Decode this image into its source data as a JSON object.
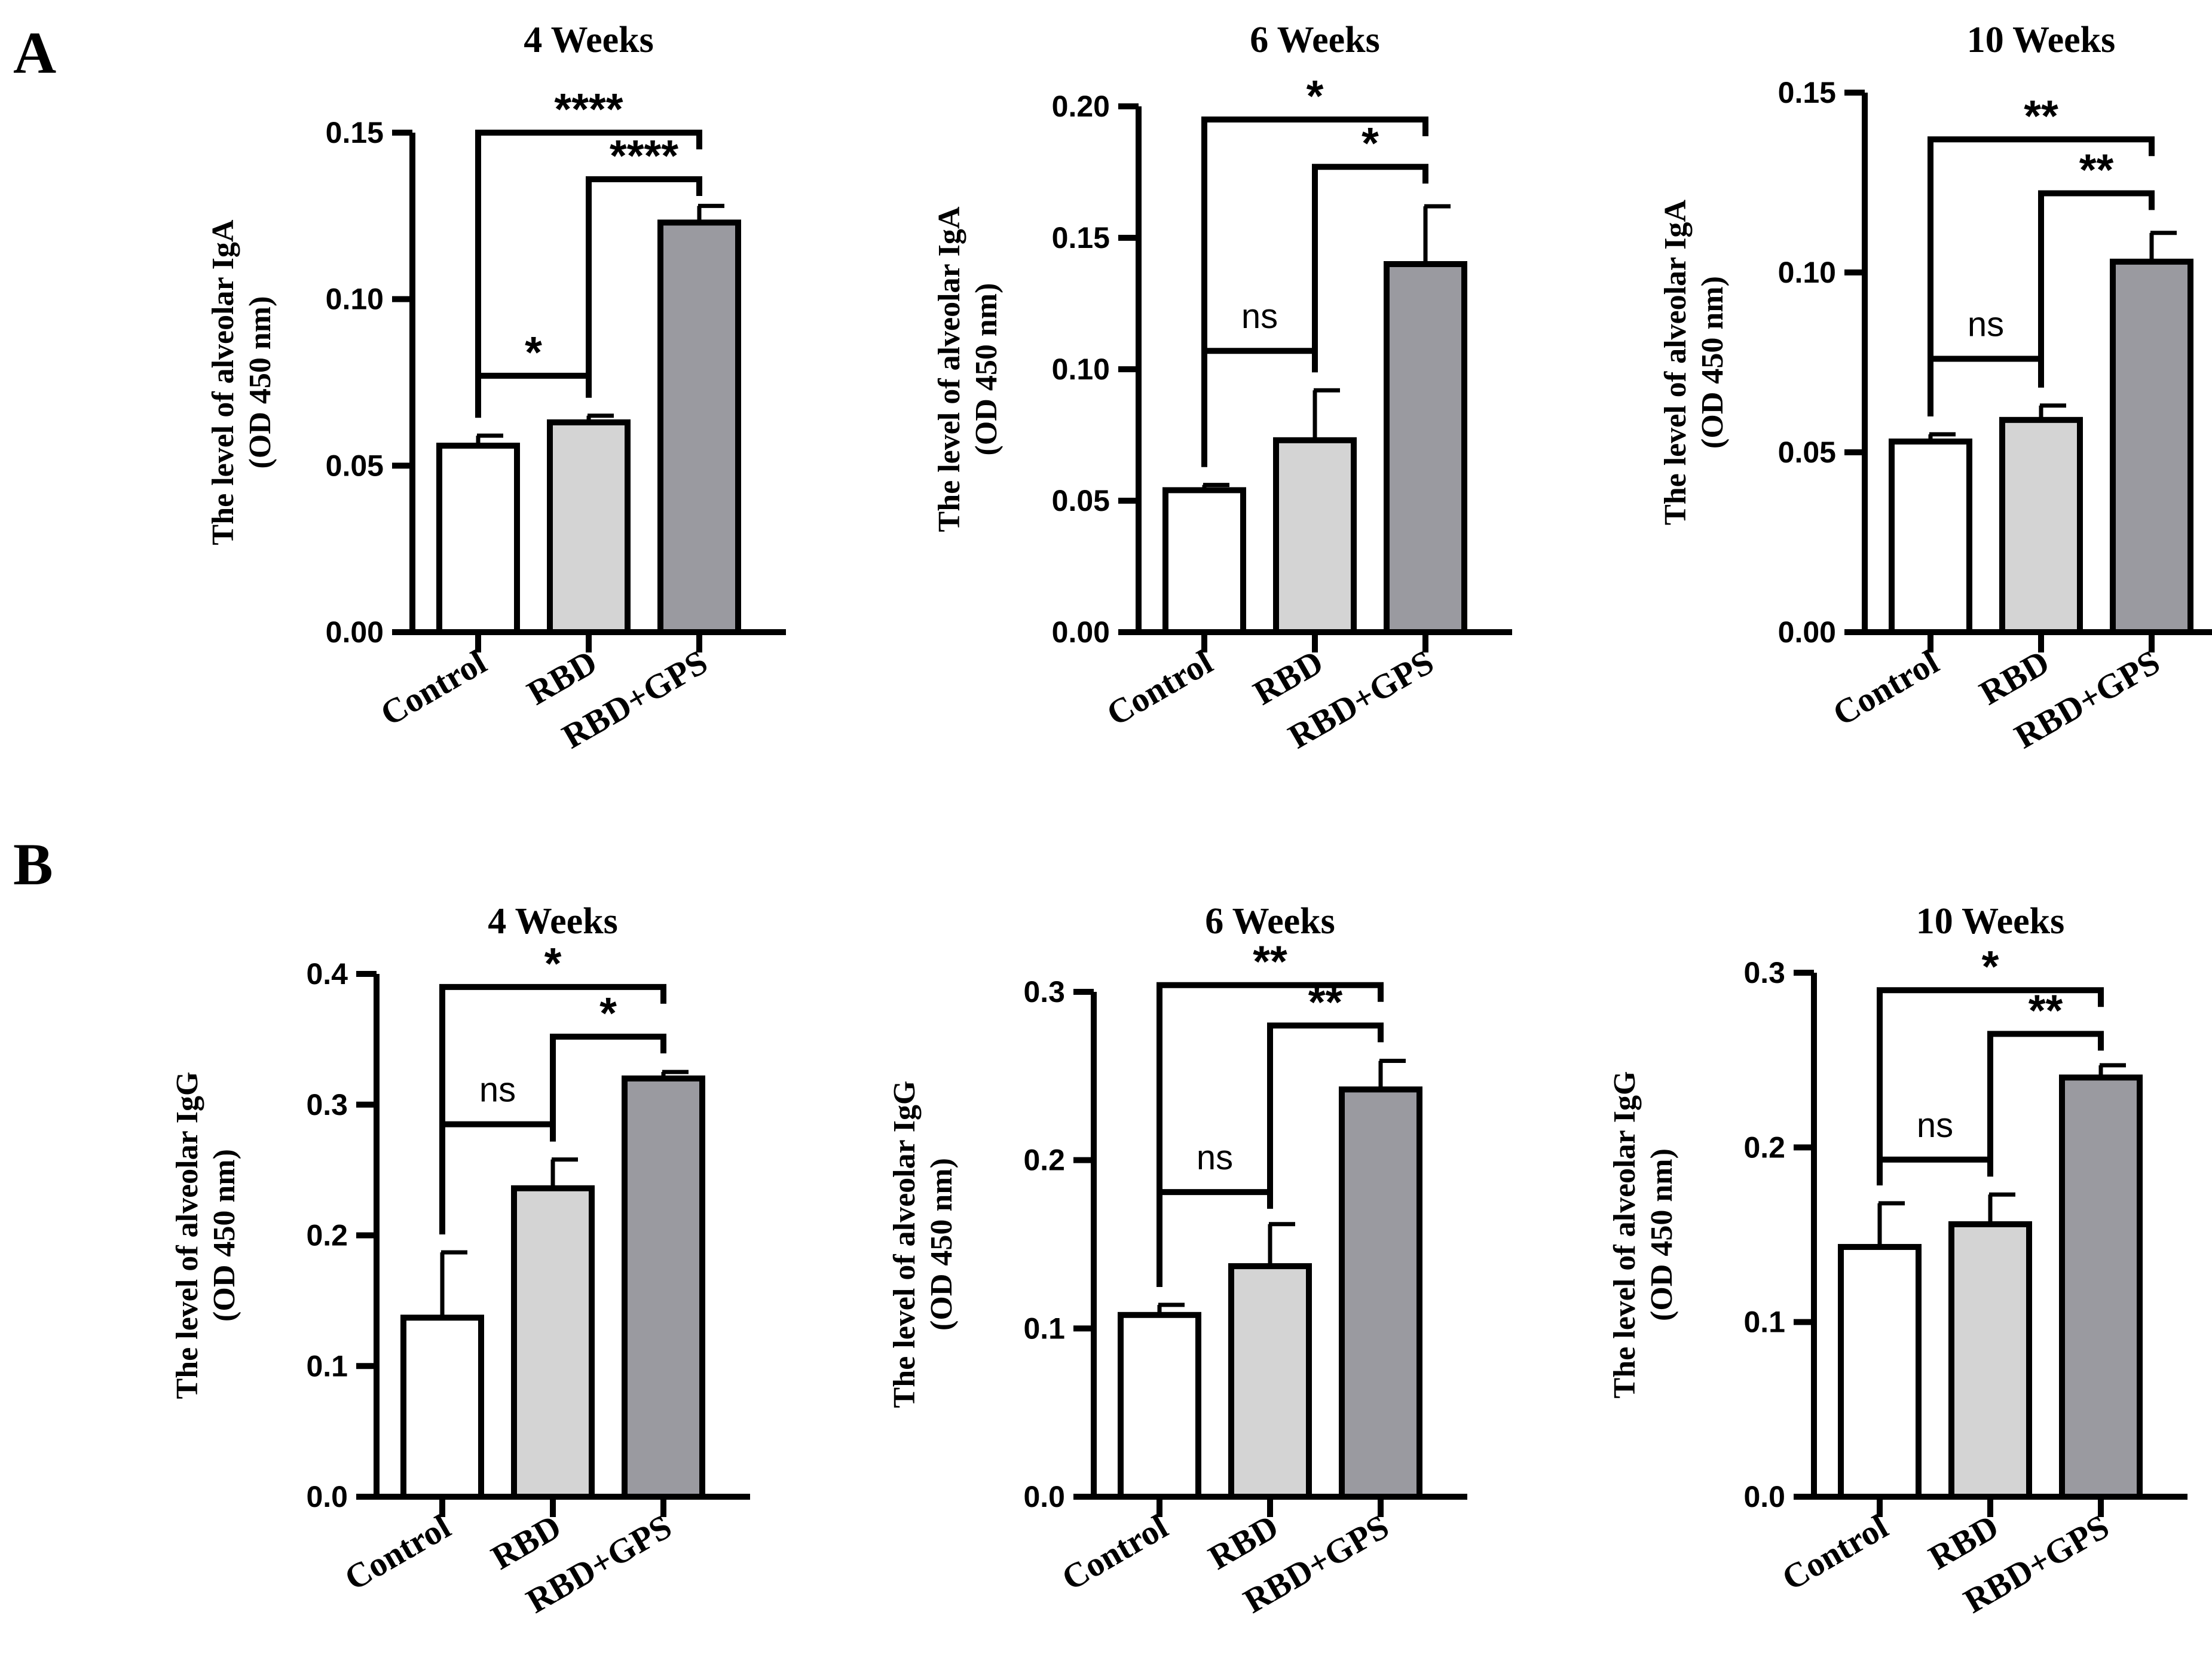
{
  "panels": [
    {
      "letter": "A"
    },
    {
      "letter": "B"
    }
  ],
  "chart_data": [
    {
      "type": "bar",
      "panel": "A",
      "title": "4 Weeks",
      "ylabel_line1": "The level of alveolar IgA",
      "ylabel_line2": "(OD 450 nm)",
      "categories": [
        "Control",
        "RBD",
        "RBD+GPS"
      ],
      "values": [
        0.056,
        0.063,
        0.123
      ],
      "errors": [
        0.003,
        0.002,
        0.005
      ],
      "ylim": [
        0,
        0.15
      ],
      "yticks": [
        0.0,
        0.05,
        0.1,
        0.15
      ],
      "ytick_labels": [
        "0.00",
        "0.05",
        "0.10",
        "0.15"
      ],
      "bar_colors": [
        "#ffffff",
        "#d4d4d4",
        "#9a9aa0"
      ],
      "comparisons": [
        {
          "from": 0,
          "to": 1,
          "label": "*",
          "level": 0.077
        },
        {
          "from": 1,
          "to": 2,
          "label": "****",
          "level": 0.136
        },
        {
          "from": 0,
          "to": 2,
          "label": "****",
          "level": 0.15
        }
      ]
    },
    {
      "type": "bar",
      "panel": "A",
      "title": "6 Weeks",
      "ylabel_line1": "The level of alveolar IgA",
      "ylabel_line2": "(OD 450 nm)",
      "categories": [
        "Control",
        "RBD",
        "RBD+GPS"
      ],
      "values": [
        0.054,
        0.073,
        0.14
      ],
      "errors": [
        0.002,
        0.019,
        0.022
      ],
      "ylim": [
        0,
        0.2
      ],
      "yticks": [
        0.0,
        0.05,
        0.1,
        0.15,
        0.2
      ],
      "ytick_labels": [
        "0.00",
        "0.05",
        "0.10",
        "0.15",
        "0.20"
      ],
      "bar_colors": [
        "#ffffff",
        "#d4d4d4",
        "#9a9aa0"
      ],
      "comparisons": [
        {
          "from": 0,
          "to": 1,
          "label": "ns",
          "level": 0.107
        },
        {
          "from": 1,
          "to": 2,
          "label": "*",
          "level": 0.177
        },
        {
          "from": 0,
          "to": 2,
          "label": "*",
          "level": 0.195
        }
      ]
    },
    {
      "type": "bar",
      "panel": "A",
      "title": "10 Weeks",
      "ylabel_line1": "The level of alveolar IgA",
      "ylabel_line2": "(OD 450 nm)",
      "categories": [
        "Control",
        "RBD",
        "RBD+GPS"
      ],
      "values": [
        0.053,
        0.059,
        0.103
      ],
      "errors": [
        0.002,
        0.004,
        0.008
      ],
      "ylim": [
        0,
        0.15
      ],
      "yticks": [
        0.0,
        0.05,
        0.1,
        0.15
      ],
      "ytick_labels": [
        "0.00",
        "0.05",
        "0.10",
        "0.15"
      ],
      "bar_colors": [
        "#ffffff",
        "#d4d4d4",
        "#9a9aa0"
      ],
      "comparisons": [
        {
          "from": 0,
          "to": 1,
          "label": "ns",
          "level": 0.076
        },
        {
          "from": 1,
          "to": 2,
          "label": "**",
          "level": 0.122
        },
        {
          "from": 0,
          "to": 2,
          "label": "**",
          "level": 0.137
        }
      ]
    },
    {
      "type": "bar",
      "panel": "B",
      "title": "4 Weeks",
      "ylabel_line1": "The level of alveolar IgG",
      "ylabel_line2": "(OD 450 nm)",
      "categories": [
        "Control",
        "RBD",
        "RBD+GPS"
      ],
      "values": [
        0.137,
        0.236,
        0.32
      ],
      "errors": [
        0.05,
        0.022,
        0.005
      ],
      "ylim": [
        0,
        0.4
      ],
      "yticks": [
        0.0,
        0.1,
        0.2,
        0.3,
        0.4
      ],
      "ytick_labels": [
        "0.0",
        "0.1",
        "0.2",
        "0.3",
        "0.4"
      ],
      "bar_colors": [
        "#ffffff",
        "#d4d4d4",
        "#9a9aa0"
      ],
      "comparisons": [
        {
          "from": 0,
          "to": 1,
          "label": "ns",
          "level": 0.285
        },
        {
          "from": 1,
          "to": 2,
          "label": "*",
          "level": 0.352
        },
        {
          "from": 0,
          "to": 2,
          "label": "*",
          "level": 0.39
        }
      ]
    },
    {
      "type": "bar",
      "panel": "B",
      "title": "6 Weeks",
      "ylabel_line1": "The level of alveolar IgG",
      "ylabel_line2": "(OD 450 nm)",
      "categories": [
        "Control",
        "RBD",
        "RBD+GPS"
      ],
      "values": [
        0.108,
        0.137,
        0.242
      ],
      "errors": [
        0.006,
        0.025,
        0.017
      ],
      "ylim": [
        0,
        0.3
      ],
      "yticks": [
        0.0,
        0.1,
        0.2,
        0.3
      ],
      "ytick_labels": [
        "0.0",
        "0.1",
        "0.2",
        "0.3"
      ],
      "bar_colors": [
        "#ffffff",
        "#d4d4d4",
        "#9a9aa0"
      ],
      "comparisons": [
        {
          "from": 0,
          "to": 1,
          "label": "ns",
          "level": 0.181
        },
        {
          "from": 1,
          "to": 2,
          "label": "**",
          "level": 0.28
        },
        {
          "from": 0,
          "to": 2,
          "label": "**",
          "level": 0.304
        }
      ]
    },
    {
      "type": "bar",
      "panel": "B",
      "title": "10 Weeks",
      "ylabel_line1": "The level of alveolar IgG",
      "ylabel_line2": "(OD 450 nm)",
      "categories": [
        "Control",
        "RBD",
        "RBD+GPS"
      ],
      "values": [
        0.143,
        0.156,
        0.24
      ],
      "errors": [
        0.025,
        0.017,
        0.007
      ],
      "ylim": [
        0,
        0.3
      ],
      "yticks": [
        0.0,
        0.1,
        0.2,
        0.3
      ],
      "ytick_labels": [
        "0.0",
        "0.1",
        "0.2",
        "0.3"
      ],
      "bar_colors": [
        "#ffffff",
        "#d4d4d4",
        "#9a9aa0"
      ],
      "comparisons": [
        {
          "from": 0,
          "to": 1,
          "label": "ns",
          "level": 0.193
        },
        {
          "from": 1,
          "to": 2,
          "label": "**",
          "level": 0.265
        },
        {
          "from": 0,
          "to": 2,
          "label": "*",
          "level": 0.29
        }
      ]
    }
  ]
}
